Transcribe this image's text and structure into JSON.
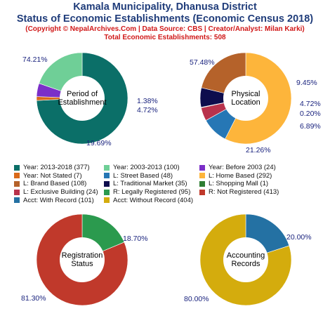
{
  "header": {
    "title_line1": "Kamala Municipality, Dhanusa District",
    "title_line2": "Status of Economic Establishments (Economic Census 2018)",
    "subtitle_line1": "(Copyright © NepalArchives.Com | Data Source: CBS | Creator/Analyst: Milan Karki)",
    "subtitle_line2": "Total Economic Establishments: 508"
  },
  "chart_data": [
    {
      "type": "pie",
      "title": "Period of Establishment",
      "center_lines": [
        "Period of",
        "Establishment"
      ],
      "slices": [
        {
          "name": "Year: 2013-2018",
          "value": 377,
          "label": "74.21%",
          "color": "#0b6f68"
        },
        {
          "name": "Year: Not Stated",
          "value": 7,
          "label": "1.38%",
          "color": "#d96a1a"
        },
        {
          "name": "Year: Before 2003",
          "value": 24,
          "label": "4.72%",
          "color": "#7b2fc8"
        },
        {
          "name": "Year: 2003-2013",
          "value": 100,
          "label": "19.69%",
          "color": "#6fcf97"
        }
      ]
    },
    {
      "type": "pie",
      "title": "Physical Location",
      "center_lines": [
        "Physical",
        "Location"
      ],
      "slices": [
        {
          "name": "L: Home Based",
          "value": 292,
          "label": "57.48%",
          "color": "#fdb53b"
        },
        {
          "name": "L: Street Based",
          "value": 48,
          "label": "9.45%",
          "color": "#2677b5"
        },
        {
          "name": "L: Exclusive Building",
          "value": 24,
          "label": "4.72%",
          "color": "#b8324c"
        },
        {
          "name": "L: Shopping Mall",
          "value": 1,
          "label": "0.20%",
          "color": "#2e7d32"
        },
        {
          "name": "L: Traditional Market",
          "value": 35,
          "label": "6.89%",
          "color": "#0d0d4d"
        },
        {
          "name": "L: Brand Based",
          "value": 108,
          "label": "21.26%",
          "color": "#b5622a"
        }
      ]
    },
    {
      "type": "pie",
      "title": "Registration Status",
      "center_lines": [
        "Registration",
        "Status"
      ],
      "slices": [
        {
          "name": "R: Legally Registered",
          "value": 95,
          "label": "18.70%",
          "color": "#2b9a4e"
        },
        {
          "name": "R: Not Registered",
          "value": 413,
          "label": "81.30%",
          "color": "#c0392b"
        }
      ]
    },
    {
      "type": "pie",
      "title": "Accounting Records",
      "center_lines": [
        "Accounting",
        "Records"
      ],
      "slices": [
        {
          "name": "Acct: With Record",
          "value": 101,
          "label": "20.00%",
          "color": "#2471a3"
        },
        {
          "name": "Acct: Without Record",
          "value": 404,
          "label": "80.00%",
          "color": "#d4ac0d"
        }
      ]
    }
  ],
  "legend": [
    [
      {
        "label": "Year: 2013-2018 (377)",
        "color": "#0b6f68"
      },
      {
        "label": "Year: 2003-2013 (100)",
        "color": "#6fcf97"
      },
      {
        "label": "Year: Before 2003 (24)",
        "color": "#7b2fc8"
      }
    ],
    [
      {
        "label": "Year: Not Stated (7)",
        "color": "#d96a1a"
      },
      {
        "label": "L: Street Based (48)",
        "color": "#2677b5"
      },
      {
        "label": "L: Home Based (292)",
        "color": "#fdb53b"
      }
    ],
    [
      {
        "label": "L: Brand Based (108)",
        "color": "#b5622a"
      },
      {
        "label": "L: Traditional Market (35)",
        "color": "#0d0d4d"
      },
      {
        "label": "L: Shopping Mall (1)",
        "color": "#2e7d32"
      }
    ],
    [
      {
        "label": "L: Exclusive Building (24)",
        "color": "#b8324c"
      },
      {
        "label": "R: Legally Registered (95)",
        "color": "#2b9a4e"
      },
      {
        "label": "R: Not Registered (413)",
        "color": "#c0392b"
      }
    ],
    [
      {
        "label": "Acct: With Record (101)",
        "color": "#2471a3"
      },
      {
        "label": "Acct: Without Record (404)",
        "color": "#d4ac0d"
      }
    ]
  ]
}
